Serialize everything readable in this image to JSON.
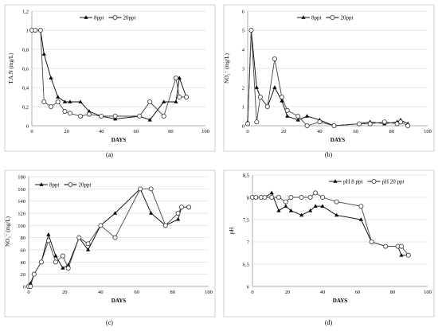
{
  "chart_data": [
    {
      "type": "line",
      "panel_label": "(a)",
      "ylabel": "T.A.N (mg/L)",
      "xlabel": "DAYS",
      "xlim": [
        0,
        100
      ],
      "ylim": [
        0,
        1.2
      ],
      "xticks": [
        "0",
        "20",
        "40",
        "60",
        "80",
        "100"
      ],
      "yticks": [
        "0",
        "0,2",
        "0,4",
        "0,6",
        "0,8",
        "1",
        "1,2"
      ],
      "ytick_values": [
        0,
        0.2,
        0.4,
        0.6,
        0.8,
        1.0,
        1.2
      ],
      "xtick_values": [
        0,
        20,
        40,
        60,
        80,
        100
      ],
      "legend_position": "top-center",
      "series": [
        {
          "name": "8ppt",
          "marker": "triangle",
          "x": [
            0,
            2,
            5,
            7,
            11,
            15,
            19,
            22,
            28,
            33,
            40,
            48,
            62,
            68,
            76,
            83,
            85,
            89
          ],
          "y": [
            1.0,
            1.0,
            1.0,
            0.75,
            0.5,
            0.3,
            0.25,
            0.25,
            0.25,
            0.15,
            0.1,
            0.07,
            0.1,
            0.06,
            0.25,
            0.25,
            0.5,
            0.3
          ]
        },
        {
          "name": "20ppt",
          "marker": "circle",
          "x": [
            0,
            2,
            5,
            7,
            11,
            15,
            19,
            22,
            28,
            33,
            40,
            48,
            62,
            68,
            76,
            83,
            85,
            89
          ],
          "y": [
            1.0,
            1.0,
            1.0,
            0.25,
            0.2,
            0.25,
            0.15,
            0.13,
            0.1,
            0.12,
            0.1,
            0.1,
            0.1,
            0.25,
            0.1,
            0.5,
            0.3,
            0.3
          ]
        }
      ]
    },
    {
      "type": "line",
      "panel_label": "(b)",
      "ylabel": "NO₂⁻ (mg/L)",
      "xlabel": "DAYS",
      "xlim": [
        0,
        100
      ],
      "ylim": [
        0,
        6
      ],
      "xticks": [
        "0",
        "20",
        "40",
        "60",
        "80",
        "100"
      ],
      "yticks": [
        "0",
        "1",
        "2",
        "3",
        "4",
        "5",
        "6"
      ],
      "ytick_values": [
        0,
        1,
        2,
        3,
        4,
        5,
        6
      ],
      "xtick_values": [
        0,
        20,
        40,
        60,
        80,
        100
      ],
      "legend_position": "top-right",
      "series": [
        {
          "name": "8ppt",
          "marker": "triangle",
          "x": [
            0,
            2,
            5,
            7,
            11,
            15,
            19,
            22,
            28,
            33,
            40,
            48,
            62,
            68,
            76,
            83,
            85,
            89
          ],
          "y": [
            0.2,
            5.0,
            2.0,
            1.5,
            1.0,
            2.0,
            1.3,
            0.5,
            0.3,
            0.5,
            0.3,
            0.0,
            0.1,
            0.2,
            0.1,
            0.2,
            0.3,
            0.1
          ]
        },
        {
          "name": "20ppt",
          "marker": "circle",
          "x": [
            0,
            2,
            5,
            7,
            11,
            15,
            19,
            22,
            28,
            33,
            40,
            48,
            62,
            68,
            76,
            83,
            85,
            89
          ],
          "y": [
            0.1,
            5.0,
            0.2,
            1.5,
            1.0,
            3.5,
            1.5,
            0.8,
            0.5,
            0.0,
            0.2,
            0.0,
            0.1,
            0.1,
            0.2,
            0.1,
            0.2,
            0.0
          ]
        }
      ]
    },
    {
      "type": "line",
      "panel_label": "(c)",
      "ylabel": "NO₃⁻ (mg/L)",
      "xlabel": "DAYS",
      "xlim": [
        0,
        100
      ],
      "ylim": [
        0,
        180
      ],
      "xticks": [
        "0",
        "20",
        "40",
        "60",
        "80",
        "100"
      ],
      "yticks": [
        "0",
        "20",
        "40",
        "60",
        "80",
        "100",
        "120",
        "140",
        "160",
        "180"
      ],
      "ytick_values": [
        0,
        20,
        40,
        60,
        80,
        100,
        120,
        140,
        160,
        180
      ],
      "xtick_values": [
        0,
        20,
        40,
        60,
        80,
        100
      ],
      "legend_position": "top-left",
      "series": [
        {
          "name": "8ppt",
          "marker": "triangle",
          "x": [
            0,
            1,
            3,
            7,
            11,
            15,
            19,
            22,
            28,
            33,
            40,
            48,
            62,
            68,
            76,
            83,
            85,
            89
          ],
          "y": [
            0,
            5,
            20,
            40,
            85,
            50,
            30,
            35,
            80,
            60,
            100,
            120,
            160,
            120,
            100,
            110,
            130,
            130
          ]
        },
        {
          "name": "20ppt",
          "marker": "circle",
          "x": [
            0,
            1,
            3,
            7,
            11,
            15,
            19,
            22,
            28,
            33,
            40,
            48,
            62,
            68,
            76,
            83,
            85,
            89
          ],
          "y": [
            0,
            0,
            20,
            40,
            75,
            40,
            50,
            30,
            80,
            70,
            100,
            80,
            160,
            160,
            100,
            120,
            130,
            130
          ]
        }
      ]
    },
    {
      "type": "line",
      "panel_label": "(d)",
      "ylabel": "pH",
      "xlabel": "DAYS",
      "xlim": [
        0,
        100
      ],
      "ylim": [
        6,
        8.5
      ],
      "xticks": [
        "0",
        "20",
        "40",
        "60",
        "80",
        "100"
      ],
      "yticks": [
        "6",
        "6,5",
        "7",
        "7,5",
        "8",
        "8,5"
      ],
      "ytick_values": [
        6,
        6.5,
        7,
        7.5,
        8,
        8.5
      ],
      "xtick_values": [
        0,
        20,
        40,
        60,
        80,
        100
      ],
      "legend_position": "top-right",
      "series": [
        {
          "name": "pH 8 ppt",
          "marker": "triangle",
          "x": [
            0,
            2,
            5,
            7,
            11,
            15,
            19,
            22,
            28,
            33,
            36,
            40,
            48,
            62,
            68,
            76,
            83,
            85,
            89
          ],
          "y": [
            8.0,
            8.0,
            8.0,
            8.0,
            8.1,
            7.7,
            7.8,
            7.7,
            7.6,
            7.7,
            7.8,
            7.8,
            7.6,
            7.5,
            7.0,
            6.9,
            6.9,
            6.7,
            6.7
          ]
        },
        {
          "name": "pH 20 ppt",
          "marker": "circle",
          "x": [
            0,
            2,
            5,
            7,
            11,
            15,
            19,
            22,
            28,
            33,
            36,
            40,
            48,
            62,
            68,
            76,
            83,
            85,
            89
          ],
          "y": [
            8.0,
            8.0,
            8.0,
            8.0,
            8.0,
            8.0,
            7.9,
            8.0,
            8.0,
            8.0,
            8.1,
            8.0,
            7.9,
            7.8,
            7.0,
            6.9,
            6.9,
            6.9,
            6.7
          ]
        }
      ]
    }
  ]
}
